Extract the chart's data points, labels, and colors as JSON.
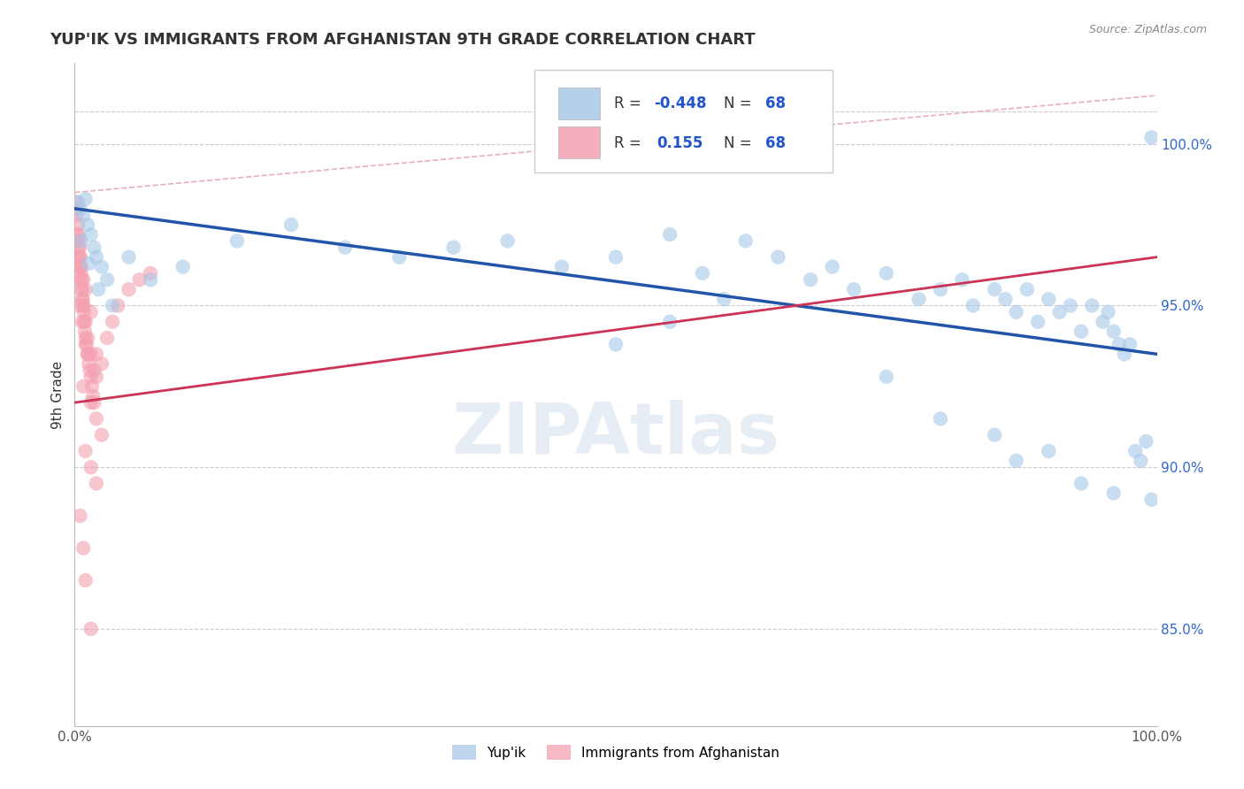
{
  "title": "YUP'IK VS IMMIGRANTS FROM AFGHANISTAN 9TH GRADE CORRELATION CHART",
  "source_text": "Source: ZipAtlas.com",
  "ylabel": "9th Grade",
  "xlim": [
    0.0,
    100.0
  ],
  "ylim": [
    82.0,
    102.5
  ],
  "ytick_labels": [
    "85.0%",
    "90.0%",
    "95.0%",
    "100.0%"
  ],
  "ytick_values": [
    85.0,
    90.0,
    95.0,
    100.0
  ],
  "xtick_labels": [
    "0.0%",
    "100.0%"
  ],
  "xtick_values": [
    0.0,
    100.0
  ],
  "blue_color": "#a8c8e8",
  "pink_color": "#f4a0b0",
  "blue_line_color": "#2255aa",
  "pink_line_color": "#cc3355",
  "blue_line_x": [
    0,
    100
  ],
  "blue_line_y": [
    98.0,
    93.5
  ],
  "pink_line_x": [
    0,
    100
  ],
  "pink_line_y": [
    92.0,
    96.5
  ],
  "ref_line_x": [
    0,
    100
  ],
  "ref_line_y": [
    98.5,
    101.5
  ],
  "watermark_text": "ZIPAtlas",
  "legend_box_r1": "R = ",
  "legend_box_v1": "-0.448",
  "legend_box_n1": "N = ",
  "legend_box_n1v": "68",
  "legend_box_r2": "R =  ",
  "legend_box_v2": "0.155",
  "legend_box_n2": "N = ",
  "legend_box_n2v": "68",
  "blue_scatter": [
    [
      0.3,
      98.2
    ],
    [
      0.5,
      98.0
    ],
    [
      0.8,
      97.8
    ],
    [
      1.0,
      98.3
    ],
    [
      1.2,
      97.5
    ],
    [
      1.5,
      97.2
    ],
    [
      1.8,
      96.8
    ],
    [
      2.0,
      96.5
    ],
    [
      2.5,
      96.2
    ],
    [
      3.0,
      95.8
    ],
    [
      0.6,
      97.0
    ],
    [
      1.3,
      96.3
    ],
    [
      2.2,
      95.5
    ],
    [
      3.5,
      95.0
    ],
    [
      5.0,
      96.5
    ],
    [
      7.0,
      95.8
    ],
    [
      10.0,
      96.2
    ],
    [
      15.0,
      97.0
    ],
    [
      20.0,
      97.5
    ],
    [
      25.0,
      96.8
    ],
    [
      30.0,
      96.5
    ],
    [
      35.0,
      96.8
    ],
    [
      40.0,
      97.0
    ],
    [
      45.0,
      96.2
    ],
    [
      50.0,
      96.5
    ],
    [
      55.0,
      97.2
    ],
    [
      58.0,
      96.0
    ],
    [
      62.0,
      97.0
    ],
    [
      65.0,
      96.5
    ],
    [
      68.0,
      95.8
    ],
    [
      70.0,
      96.2
    ],
    [
      72.0,
      95.5
    ],
    [
      75.0,
      96.0
    ],
    [
      78.0,
      95.2
    ],
    [
      80.0,
      95.5
    ],
    [
      82.0,
      95.8
    ],
    [
      83.0,
      95.0
    ],
    [
      85.0,
      95.5
    ],
    [
      86.0,
      95.2
    ],
    [
      87.0,
      94.8
    ],
    [
      88.0,
      95.5
    ],
    [
      89.0,
      94.5
    ],
    [
      90.0,
      95.2
    ],
    [
      91.0,
      94.8
    ],
    [
      92.0,
      95.0
    ],
    [
      93.0,
      94.2
    ],
    [
      94.0,
      95.0
    ],
    [
      95.0,
      94.5
    ],
    [
      95.5,
      94.8
    ],
    [
      96.0,
      94.2
    ],
    [
      96.5,
      93.8
    ],
    [
      97.0,
      93.5
    ],
    [
      97.5,
      93.8
    ],
    [
      98.0,
      90.5
    ],
    [
      98.5,
      90.2
    ],
    [
      99.0,
      90.8
    ],
    [
      99.5,
      100.2
    ],
    [
      60.0,
      95.2
    ],
    [
      50.0,
      93.8
    ],
    [
      55.0,
      94.5
    ],
    [
      75.0,
      92.8
    ],
    [
      80.0,
      91.5
    ],
    [
      85.0,
      91.0
    ],
    [
      87.0,
      90.2
    ],
    [
      90.0,
      90.5
    ],
    [
      93.0,
      89.5
    ],
    [
      96.0,
      89.2
    ],
    [
      99.5,
      89.0
    ]
  ],
  "pink_scatter": [
    [
      0.15,
      98.2
    ],
    [
      0.2,
      97.8
    ],
    [
      0.25,
      98.0
    ],
    [
      0.3,
      97.5
    ],
    [
      0.35,
      97.2
    ],
    [
      0.4,
      97.0
    ],
    [
      0.45,
      96.8
    ],
    [
      0.5,
      96.5
    ],
    [
      0.55,
      96.2
    ],
    [
      0.6,
      96.0
    ],
    [
      0.65,
      95.8
    ],
    [
      0.7,
      95.5
    ],
    [
      0.75,
      95.2
    ],
    [
      0.8,
      95.0
    ],
    [
      0.85,
      94.8
    ],
    [
      0.9,
      94.5
    ],
    [
      0.95,
      94.2
    ],
    [
      1.0,
      94.0
    ],
    [
      1.1,
      93.8
    ],
    [
      1.2,
      93.5
    ],
    [
      1.3,
      93.2
    ],
    [
      1.4,
      93.0
    ],
    [
      1.5,
      92.8
    ],
    [
      1.6,
      92.5
    ],
    [
      1.7,
      92.2
    ],
    [
      1.8,
      92.0
    ],
    [
      0.3,
      96.5
    ],
    [
      0.4,
      96.2
    ],
    [
      0.5,
      95.8
    ],
    [
      0.6,
      95.5
    ],
    [
      0.7,
      95.2
    ],
    [
      0.8,
      95.0
    ],
    [
      1.0,
      94.5
    ],
    [
      1.2,
      94.0
    ],
    [
      1.5,
      93.5
    ],
    [
      1.8,
      93.0
    ],
    [
      2.0,
      92.8
    ],
    [
      2.5,
      93.2
    ],
    [
      3.0,
      94.0
    ],
    [
      3.5,
      94.5
    ],
    [
      4.0,
      95.0
    ],
    [
      5.0,
      95.5
    ],
    [
      6.0,
      95.8
    ],
    [
      7.0,
      96.0
    ],
    [
      0.2,
      97.2
    ],
    [
      0.3,
      97.0
    ],
    [
      0.4,
      96.8
    ],
    [
      0.5,
      96.5
    ],
    [
      0.6,
      96.2
    ],
    [
      0.8,
      95.8
    ],
    [
      1.0,
      95.5
    ],
    [
      1.5,
      94.8
    ],
    [
      2.0,
      93.5
    ],
    [
      0.5,
      95.0
    ],
    [
      0.7,
      94.5
    ],
    [
      1.0,
      93.8
    ],
    [
      1.2,
      93.5
    ],
    [
      0.8,
      92.5
    ],
    [
      1.5,
      92.0
    ],
    [
      2.0,
      91.5
    ],
    [
      2.5,
      91.0
    ],
    [
      1.0,
      90.5
    ],
    [
      1.5,
      90.0
    ],
    [
      2.0,
      89.5
    ],
    [
      0.5,
      88.5
    ],
    [
      0.8,
      87.5
    ],
    [
      1.0,
      86.5
    ],
    [
      1.5,
      85.0
    ]
  ]
}
